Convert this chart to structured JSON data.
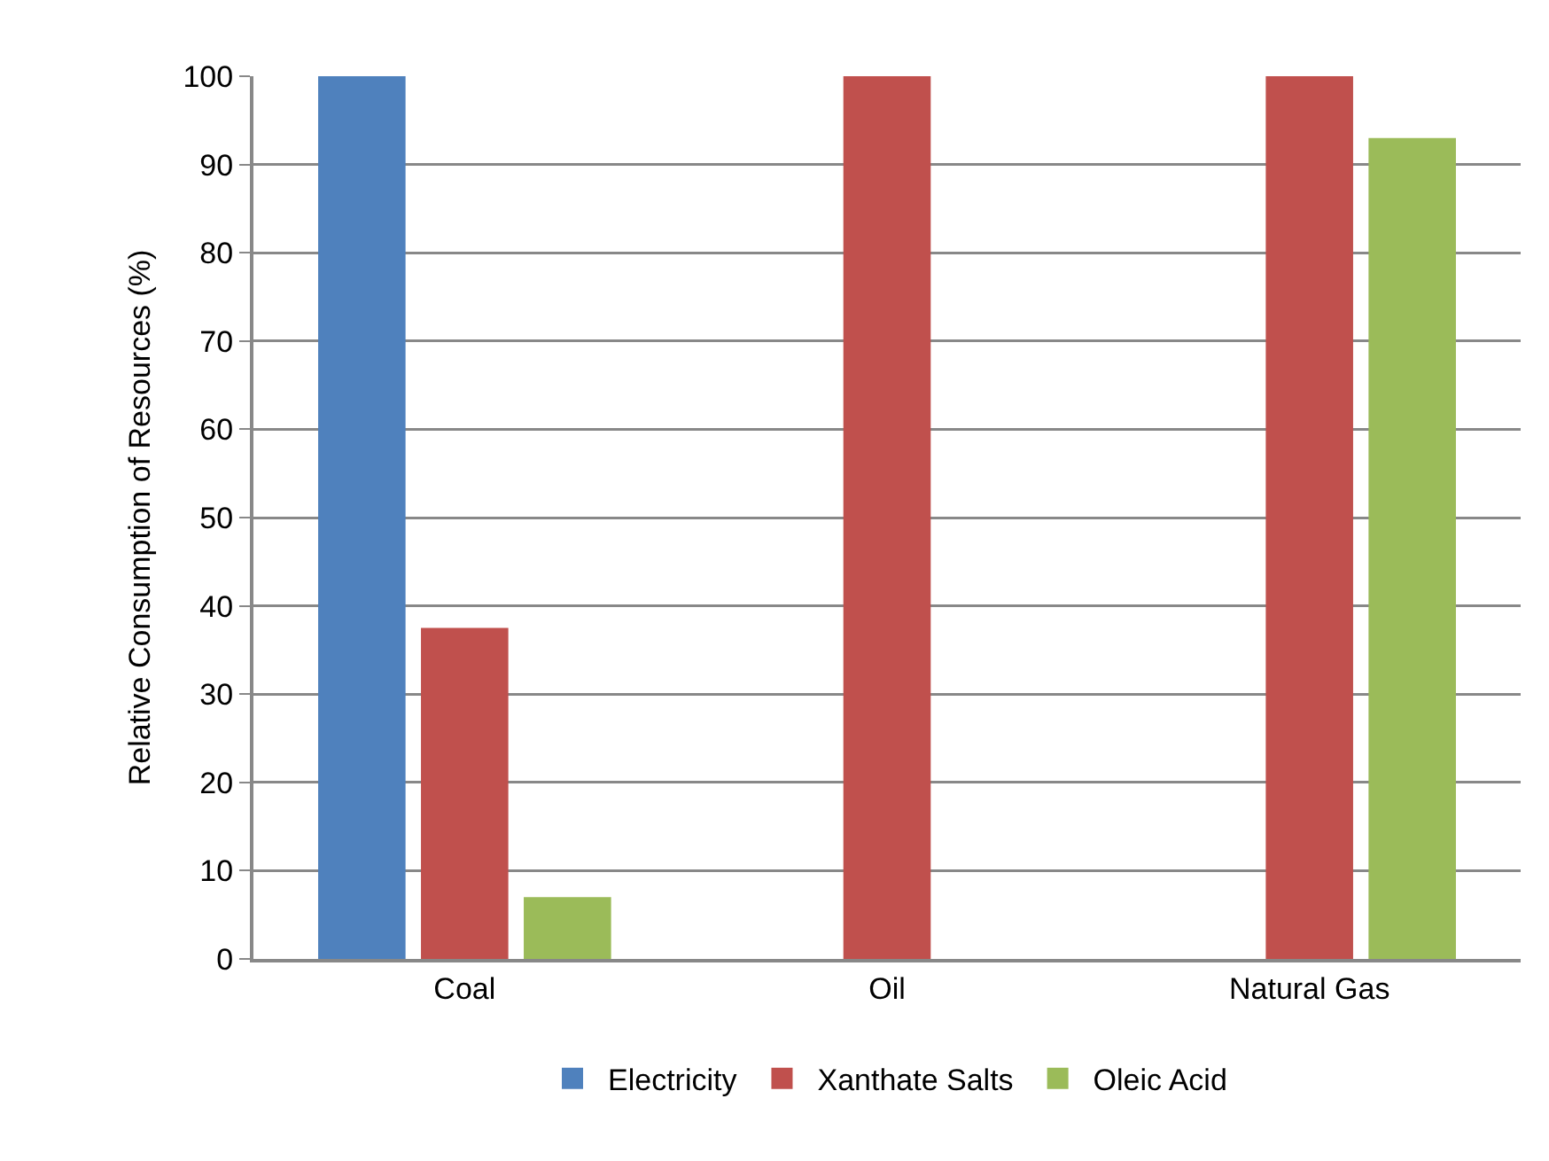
{
  "chart_data": {
    "type": "bar",
    "ylabel": "Relative Consumption of Resources (%)",
    "categories": [
      "Coal",
      "Oil",
      "Natural Gas"
    ],
    "series": [
      {
        "name": "Electricity",
        "color": "#4f81bd",
        "values": [
          100,
          null,
          null
        ]
      },
      {
        "name": "Xanthate Salts",
        "color": "#c0504d",
        "values": [
          37.5,
          100,
          100
        ]
      },
      {
        "name": "Oleic Acid",
        "color": "#9bbb59",
        "values": [
          7,
          null,
          93
        ]
      }
    ],
    "ylim": [
      0,
      100
    ],
    "yticks": [
      0,
      10,
      20,
      30,
      40,
      50,
      60,
      70,
      80,
      90,
      100
    ],
    "grid": "y",
    "legend": "bottom"
  }
}
